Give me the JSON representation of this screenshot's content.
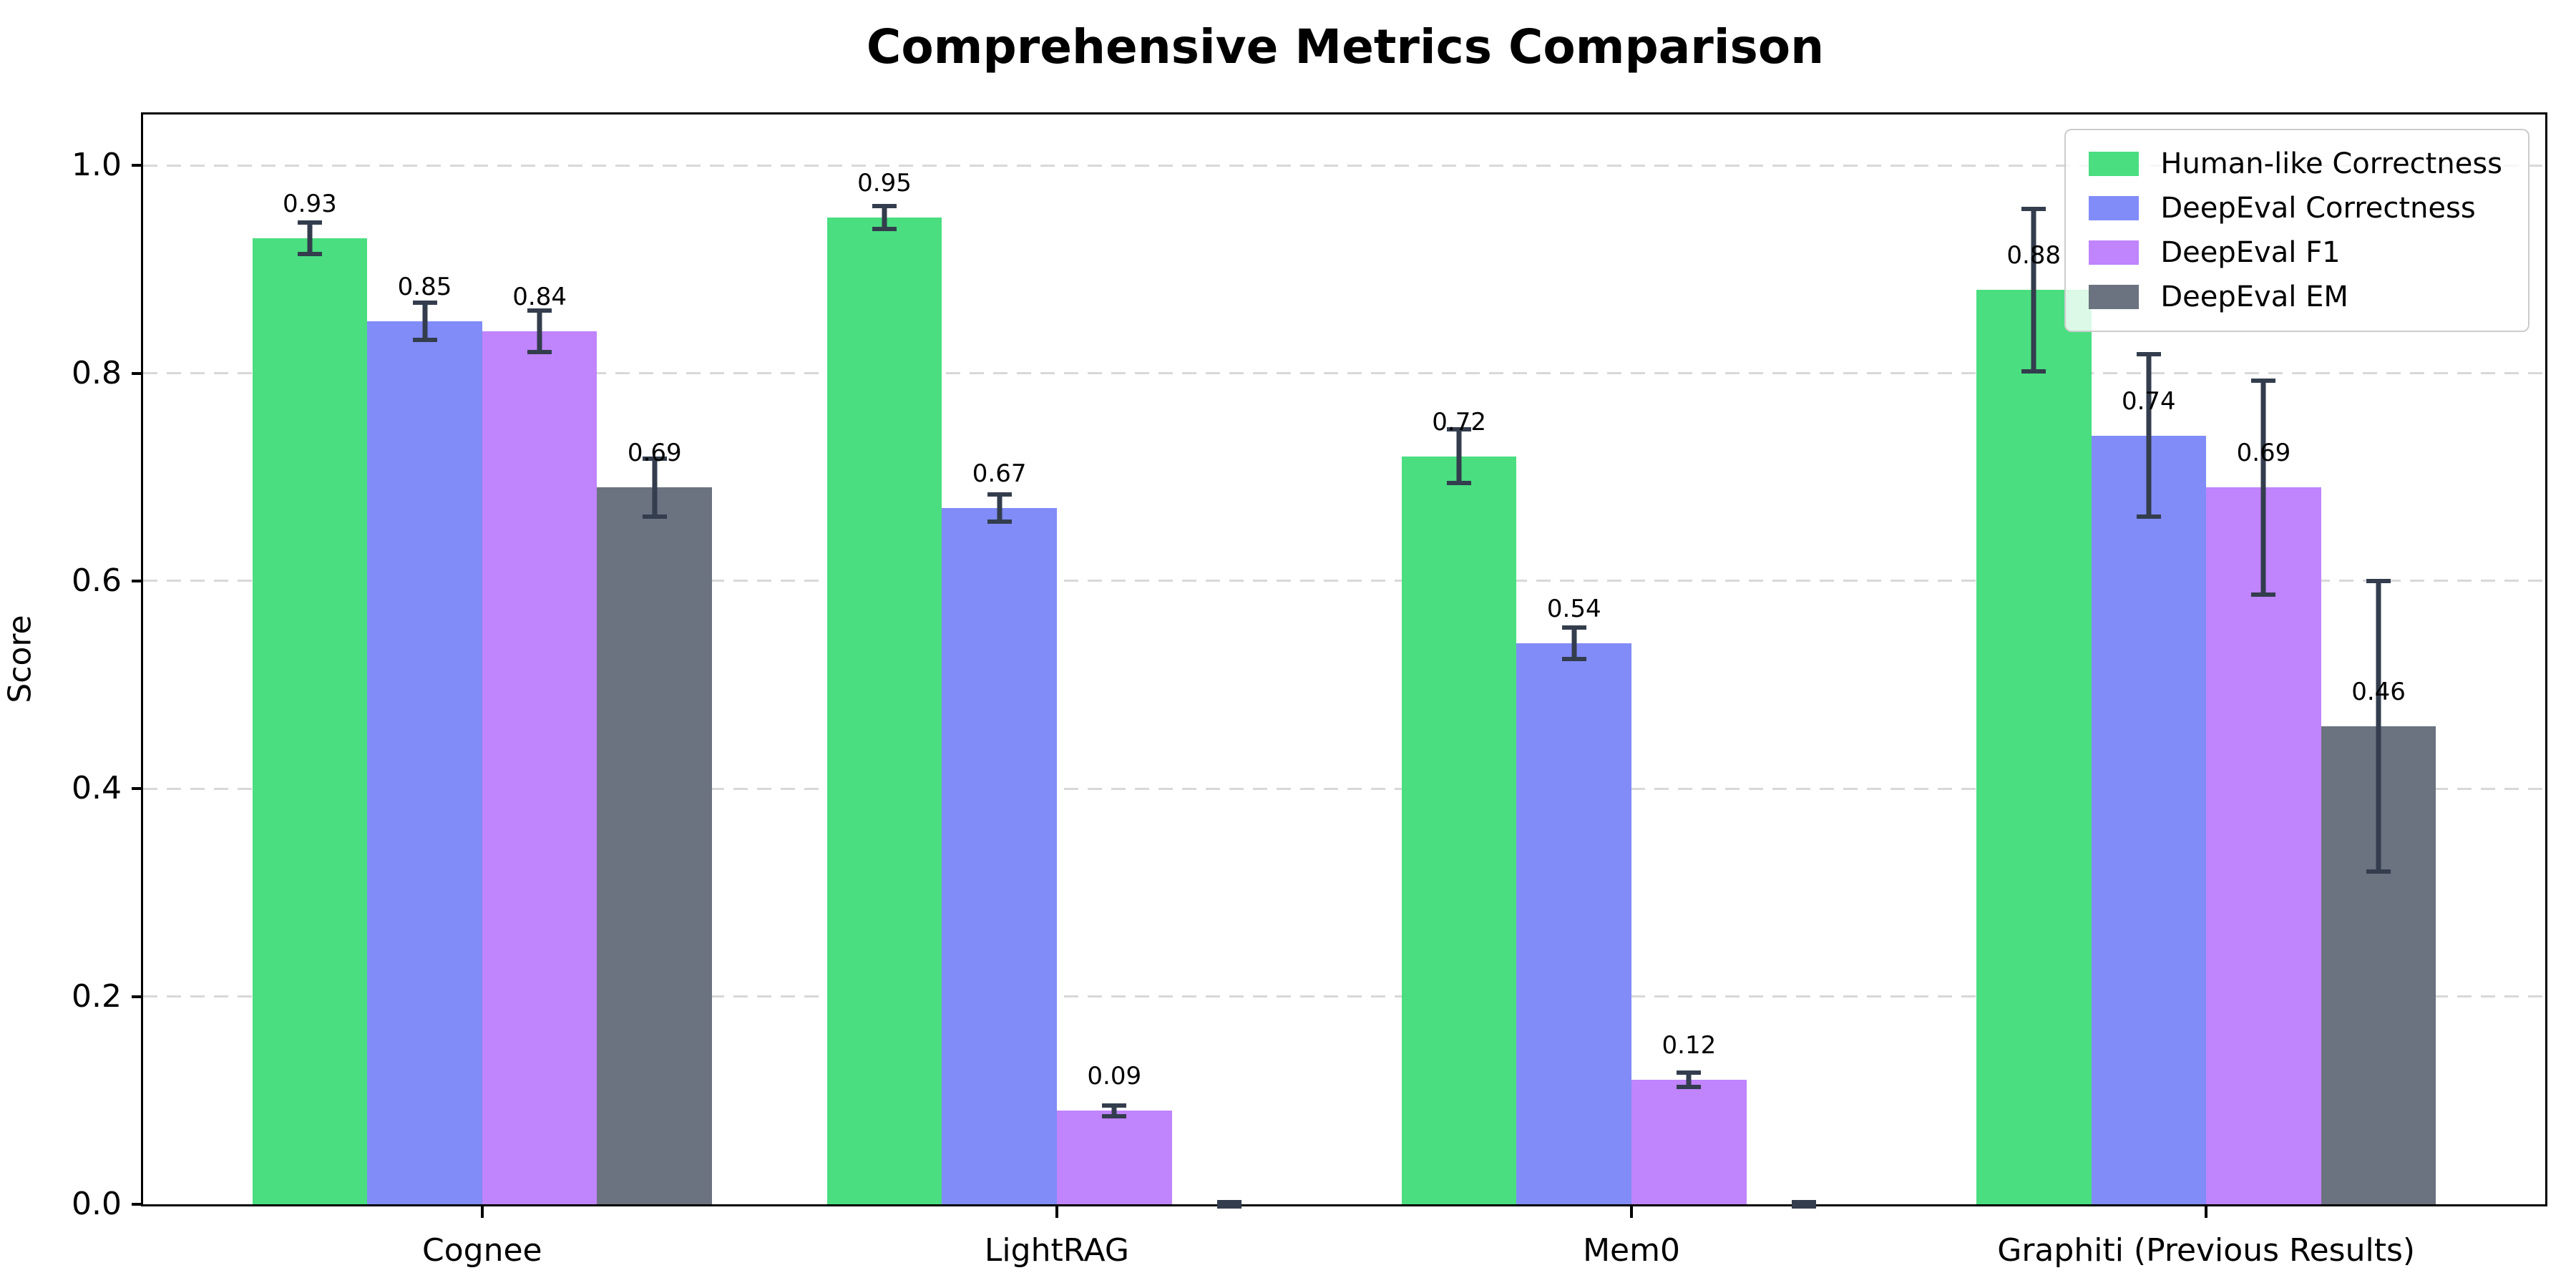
{
  "figure": {
    "title": "Comprehensive Metrics Comparison",
    "ylabel": "Score",
    "background": "#ffffff"
  },
  "chart_data": {
    "type": "bar",
    "title": "Comprehensive Metrics Comparison",
    "xlabel": "",
    "ylabel": "Score",
    "categories": [
      "Cognee",
      "LightRAG",
      "Mem0",
      "Graphiti (Previous Results)"
    ],
    "series": [
      {
        "name": "Human-like Correctness",
        "color": "#4ade80",
        "values": [
          0.93,
          0.95,
          0.72,
          0.88
        ],
        "errors": [
          0.015,
          0.011,
          0.026,
          0.078
        ],
        "value_labels": [
          "0.93",
          "0.95",
          "0.72",
          "0.88"
        ]
      },
      {
        "name": "DeepEval Correctness",
        "color": "#818cf8",
        "values": [
          0.85,
          0.67,
          0.54,
          0.74
        ],
        "errors": [
          0.018,
          0.013,
          0.015,
          0.078
        ],
        "value_labels": [
          "0.85",
          "0.67",
          "0.54",
          "0.74"
        ]
      },
      {
        "name": "DeepEval F1",
        "color": "#c084fc",
        "values": [
          0.84,
          0.09,
          0.12,
          0.69
        ],
        "errors": [
          0.02,
          0.005,
          0.007,
          0.103
        ],
        "value_labels": [
          "0.84",
          "0.09",
          "0.12",
          "0.69"
        ]
      },
      {
        "name": "DeepEval EM",
        "color": "#6b7280",
        "values": [
          0.69,
          0.0,
          0.0,
          0.46
        ],
        "errors": [
          0.028,
          0.002,
          0.002,
          0.14
        ],
        "value_labels": [
          "0.69",
          null,
          null,
          "0.46"
        ]
      }
    ],
    "yticks": [
      "0.0",
      "0.2",
      "0.4",
      "0.6",
      "0.8",
      "1.0"
    ],
    "ylim": [
      0,
      1.049
    ],
    "grid": {
      "axis": "y",
      "style": "dashed",
      "color": "#d8d8d8"
    },
    "error_bar_color": "#333d4d",
    "legend": {
      "position": "upper right"
    }
  }
}
